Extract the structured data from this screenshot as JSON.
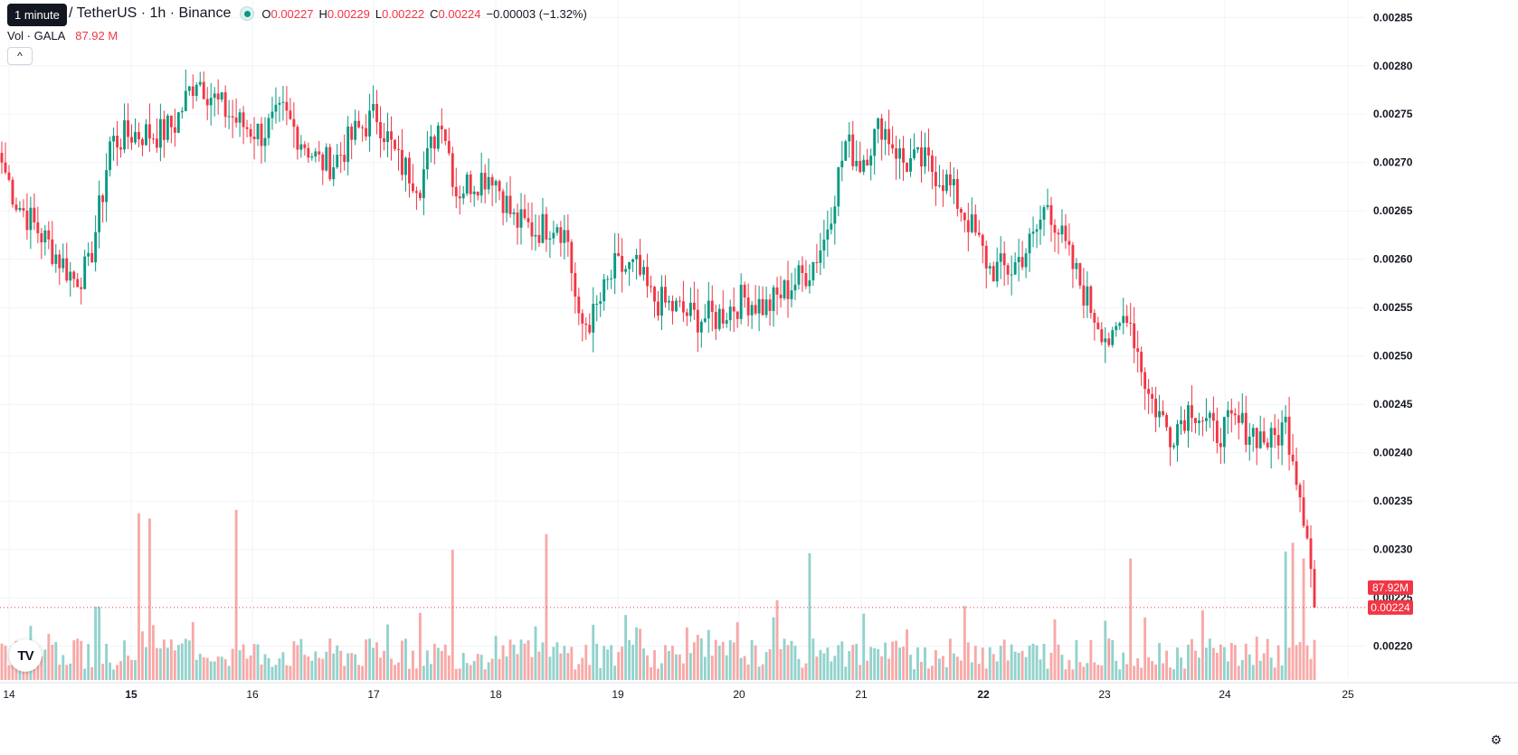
{
  "header": {
    "tooltip": "1 minute",
    "symbol_title": "/ TetherUS · 1h · Binance",
    "ohlc": [
      {
        "key": "O",
        "value": "0.00227"
      },
      {
        "key": "H",
        "value": "0.00229"
      },
      {
        "key": "L",
        "value": "0.00222"
      },
      {
        "key": "C",
        "value": "0.00224"
      }
    ],
    "change": "−0.00003 (−1.32%)",
    "volume_label": "Vol · GALA",
    "volume_value": "87.92 M",
    "collapse_glyph": "^"
  },
  "colors": {
    "up": "#089981",
    "down": "#f23645",
    "up_volume": "#92d2cc",
    "down_volume": "#f7a9a7",
    "grid": "#f0f3fa"
  },
  "icons": {
    "logo": "tradingview-logo",
    "settings": "gear-icon"
  },
  "logo_text": "TV",
  "chart_data": {
    "type": "candlestick",
    "y_axis": {
      "ticks": [
        "0.00285",
        "0.00280",
        "0.00275",
        "0.00270",
        "0.00265",
        "0.00260",
        "0.00255",
        "0.00250",
        "0.00245",
        "0.00240",
        "0.00235",
        "0.00230",
        "0.00225",
        "0.00220"
      ],
      "ylim": [
        0.002167,
        0.002868
      ]
    },
    "x_axis": {
      "ticks": [
        {
          "label": "14",
          "bold": false
        },
        {
          "label": "15",
          "bold": true
        },
        {
          "label": "16",
          "bold": false
        },
        {
          "label": "17",
          "bold": false
        },
        {
          "label": "18",
          "bold": false
        },
        {
          "label": "19",
          "bold": false
        },
        {
          "label": "20",
          "bold": false
        },
        {
          "label": "21",
          "bold": false
        },
        {
          "label": "22",
          "bold": true
        },
        {
          "label": "23",
          "bold": false
        },
        {
          "label": "24",
          "bold": false
        },
        {
          "label": "25",
          "bold": false
        }
      ]
    },
    "price_badges": {
      "volume": "87.92M",
      "last_price": "0.00224"
    },
    "last_price": 0.00224,
    "anchors": [
      [
        0,
        0.0027
      ],
      [
        4,
        0.00266
      ],
      [
        8,
        0.00264
      ],
      [
        14,
        0.00261
      ],
      [
        20,
        0.00258
      ],
      [
        24,
        0.00259
      ],
      [
        28,
        0.00267
      ],
      [
        30,
        0.00272
      ],
      [
        36,
        0.00273
      ],
      [
        44,
        0.00273
      ],
      [
        48,
        0.00274
      ],
      [
        54,
        0.00279
      ],
      [
        60,
        0.00276
      ],
      [
        66,
        0.00274
      ],
      [
        72,
        0.00273
      ],
      [
        78,
        0.00275
      ],
      [
        88,
        0.0027
      ],
      [
        92,
        0.0027
      ],
      [
        98,
        0.00273
      ],
      [
        104,
        0.00275
      ],
      [
        110,
        0.0027
      ],
      [
        116,
        0.00268
      ],
      [
        122,
        0.00275
      ],
      [
        126,
        0.00267
      ],
      [
        130,
        0.00268
      ],
      [
        136,
        0.00269
      ],
      [
        142,
        0.00264
      ],
      [
        148,
        0.00263
      ],
      [
        154,
        0.00264
      ],
      [
        157,
        0.00262
      ],
      [
        160,
        0.00253
      ],
      [
        164,
        0.00254
      ],
      [
        170,
        0.00259
      ],
      [
        176,
        0.00259
      ],
      [
        180,
        0.00256
      ],
      [
        186,
        0.00255
      ],
      [
        192,
        0.00254
      ],
      [
        198,
        0.00254
      ],
      [
        206,
        0.00256
      ],
      [
        212,
        0.00255
      ],
      [
        218,
        0.00257
      ],
      [
        224,
        0.00259
      ],
      [
        228,
        0.00262
      ],
      [
        234,
        0.00272
      ],
      [
        238,
        0.0027
      ],
      [
        244,
        0.00274
      ],
      [
        250,
        0.0027
      ],
      [
        256,
        0.0027
      ],
      [
        262,
        0.00268
      ],
      [
        268,
        0.00264
      ],
      [
        274,
        0.00259
      ],
      [
        280,
        0.00259
      ],
      [
        286,
        0.00262
      ],
      [
        290,
        0.00266
      ],
      [
        296,
        0.0026
      ],
      [
        302,
        0.00255
      ],
      [
        308,
        0.00251
      ],
      [
        312,
        0.00255
      ],
      [
        318,
        0.00246
      ],
      [
        324,
        0.00242
      ],
      [
        330,
        0.00245
      ],
      [
        336,
        0.00242
      ],
      [
        342,
        0.00243
      ],
      [
        348,
        0.00242
      ],
      [
        352,
        0.00241
      ],
      [
        356,
        0.00243
      ],
      [
        358,
        0.0024
      ],
      [
        362,
        0.00232
      ],
      [
        364,
        0.00224
      ]
    ],
    "spikes": [
      {
        "i": 38,
        "v": 96
      },
      {
        "i": 41,
        "v": 93
      },
      {
        "i": 65,
        "v": 98
      },
      {
        "i": 125,
        "v": 75
      },
      {
        "i": 151,
        "v": 84
      },
      {
        "i": 224,
        "v": 73
      },
      {
        "i": 313,
        "v": 70
      },
      {
        "i": 356,
        "v": 74
      },
      {
        "i": 358,
        "v": 79
      },
      {
        "i": 361,
        "v": 70
      }
    ]
  }
}
